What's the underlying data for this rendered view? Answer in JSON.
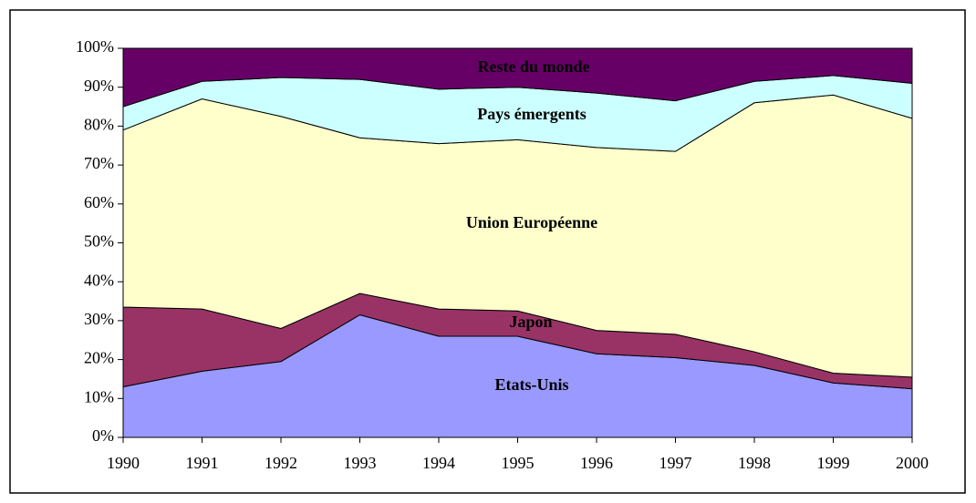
{
  "chart_data": {
    "type": "stacked_area_100",
    "x": [
      1990,
      1991,
      1992,
      1993,
      1994,
      1995,
      1996,
      1997,
      1998,
      1999,
      2000
    ],
    "xlim": [
      1990,
      2000
    ],
    "xticks": [
      1990,
      1991,
      1992,
      1993,
      1994,
      1995,
      1996,
      1997,
      1998,
      1999,
      2000
    ],
    "ylim": [
      0,
      100
    ],
    "yticks": [
      {
        "value": 0,
        "label": "0%"
      },
      {
        "value": 10,
        "label": "10%"
      },
      {
        "value": 20,
        "label": "20%"
      },
      {
        "value": 30,
        "label": "30%"
      },
      {
        "value": 40,
        "label": "40%"
      },
      {
        "value": 50,
        "label": "50%"
      },
      {
        "value": 60,
        "label": "60%"
      },
      {
        "value": 70,
        "label": "70%"
      },
      {
        "value": 80,
        "label": "80%"
      },
      {
        "value": 90,
        "label": "90%"
      },
      {
        "value": 100,
        "label": "100%"
      }
    ],
    "grid": false,
    "series": [
      {
        "name": "Etats-Unis",
        "color": "#9999ff",
        "values": [
          13,
          17,
          19.5,
          31.5,
          26,
          26,
          21.5,
          20.5,
          18.5,
          14,
          12.5
        ]
      },
      {
        "name": "Japon",
        "color": "#993366",
        "values": [
          20.5,
          16,
          8.5,
          5.5,
          7,
          6.5,
          6,
          6,
          3.5,
          2.5,
          3
        ]
      },
      {
        "name": "Union Européenne",
        "color": "#ffffcc",
        "values": [
          45.5,
          54,
          54.5,
          40,
          42.5,
          44,
          47,
          47,
          64,
          71.5,
          66.5
        ]
      },
      {
        "name": "Pays émergents",
        "color": "#ccffff",
        "values": [
          6,
          4.5,
          10,
          15,
          14,
          13.5,
          14,
          13,
          5.5,
          5,
          9
        ]
      },
      {
        "name": "Reste du  monde",
        "color": "#660066",
        "values": [
          15,
          8.5,
          7.5,
          8,
          10.5,
          10,
          11.5,
          13.5,
          8.5,
          7,
          9
        ]
      }
    ]
  }
}
